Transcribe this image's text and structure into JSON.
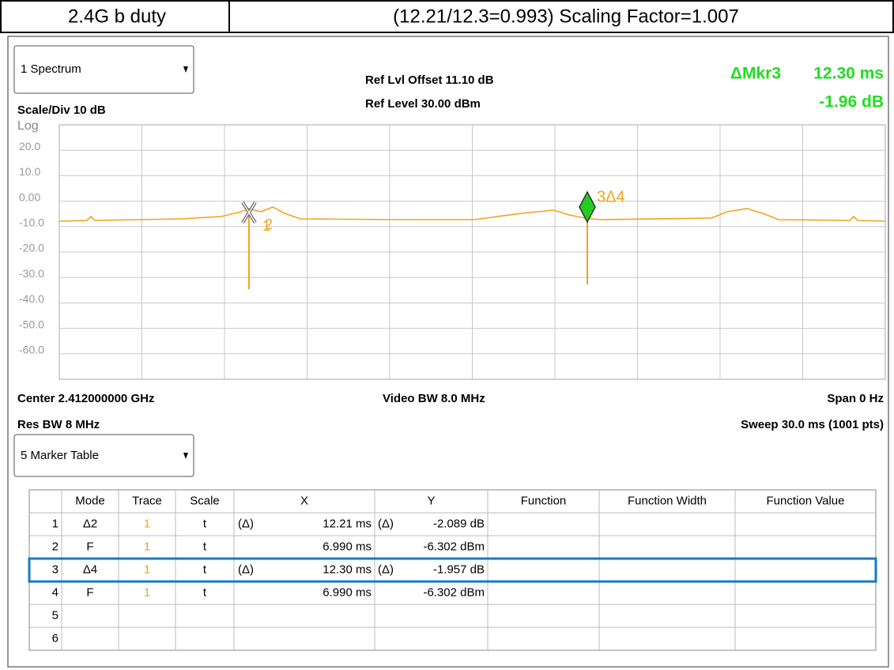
{
  "header": {
    "left": "2.4G b duty",
    "right": "(12.21/12.3=0.993) Scaling Factor=1.007"
  },
  "spectrum": {
    "window": "1 Spectrum",
    "scale": "Scale/Div 10 dB",
    "ref_offset": "Ref Lvl Offset 11.10 dB",
    "ref_level": "Ref Level 30.00 dBm",
    "marker_name": "ΔMkr3",
    "marker_x": "12.30 ms",
    "marker_y": "-1.96 dB",
    "log": "Log",
    "yticks": [
      "20.0",
      "10.0",
      "0.00",
      "-10.0",
      "-20.0",
      "-30.0",
      "-40.0",
      "-50.0",
      "-60.0"
    ],
    "markers": [
      "1",
      "2",
      "3Δ4"
    ],
    "center": "Center 2.412000000 GHz",
    "video_bw": "Video BW 8.0 MHz",
    "span": "Span 0 Hz",
    "res_bw": "Res BW 8 MHz",
    "sweep": "Sweep 30.0 ms (1001 pts)"
  },
  "marker_table": {
    "window": "5 Marker Table",
    "columns": [
      "Mode",
      "Trace",
      "Scale",
      "X",
      "Y",
      "Function",
      "Function Width",
      "Function Value"
    ],
    "rows": [
      {
        "n": "1",
        "mode": "Δ2",
        "trace": "1",
        "scale": "t",
        "x_ref": "(Δ)",
        "x": "12.21 ms",
        "y_ref": "(Δ)",
        "y": "-2.089 dB"
      },
      {
        "n": "2",
        "mode": "F",
        "trace": "1",
        "scale": "t",
        "x": "6.990 ms",
        "y": "-6.302 dBm"
      },
      {
        "n": "3",
        "mode": "Δ4",
        "trace": "1",
        "scale": "t",
        "x_ref": "(Δ)",
        "x": "12.30 ms",
        "y_ref": "(Δ)",
        "y": "-1.957 dB"
      },
      {
        "n": "4",
        "mode": "F",
        "trace": "1",
        "scale": "t",
        "x": "6.990 ms",
        "y": "-6.302 dBm"
      },
      {
        "n": "5"
      },
      {
        "n": "6"
      }
    ]
  }
}
